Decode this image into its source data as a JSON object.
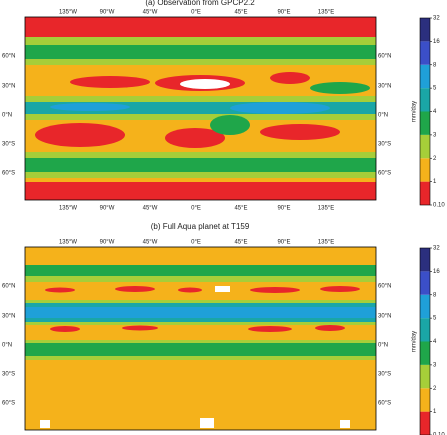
{
  "panels": [
    {
      "title": "(a) Observation from GPCP2.2",
      "lon_labels": [
        "135°W",
        "90°W",
        "45°W",
        "0°E",
        "45°E",
        "90°E",
        "135°E"
      ],
      "lat_labels": [
        "60°N",
        "30°N",
        "0°N",
        "30°S",
        "60°S"
      ],
      "colorbar": {
        "label": "mm/day",
        "ticks": [
          {
            "value": 0.1,
            "label": "0.10"
          },
          1,
          2,
          3,
          4,
          5,
          8,
          16,
          32
        ],
        "colors": [
          "#e8262a",
          "#f5b21b",
          "#a6ce39",
          "#1fa64a",
          "#1aa6a6",
          "#1fa0d8",
          "#3b4fc8",
          "#2b2f7e"
        ]
      }
    },
    {
      "title": "(b) Full Aqua planet at T159",
      "lon_labels": [
        "135°W",
        "90°W",
        "45°W",
        "0°E",
        "45°E",
        "90°E",
        "135°E"
      ],
      "lat_labels": [
        "60°N",
        "30°N",
        "0°N",
        "30°S",
        "60°S"
      ],
      "colorbar": {
        "label": "mm/day",
        "ticks": [
          {
            "value": 0.1,
            "label": "0.10"
          },
          1,
          2,
          3,
          4,
          5,
          8,
          16,
          32
        ],
        "colors": [
          "#e8262a",
          "#f5b21b",
          "#a6ce39",
          "#1fa64a",
          "#1aa6a6",
          "#1fa0d8",
          "#3b4fc8",
          "#2b2f7e"
        ]
      }
    }
  ]
}
